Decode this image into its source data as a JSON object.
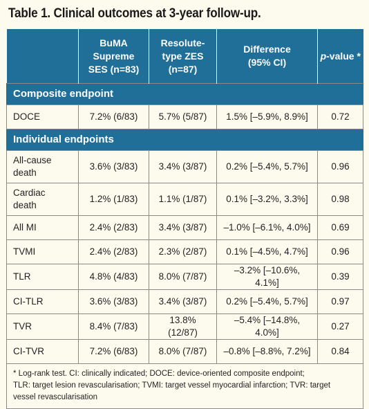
{
  "title": "Table 1. Clinical outcomes at 3-year follow-up.",
  "header": {
    "col1_lines": [
      "BuMA",
      "Supreme",
      "SES (n=83)"
    ],
    "col2_lines": [
      "Resolute-",
      "type ZES",
      "(n=87)"
    ],
    "col3_lines": [
      "Difference",
      "(95% CI)"
    ],
    "col4_italic": "p",
    "col4_rest": "-value",
    "col4_mark": "*"
  },
  "sections": [
    {
      "label": "Composite endpoint",
      "rows": [
        {
          "label": [
            "DOCE"
          ],
          "buma": "7.2% (6/83)",
          "zes": "5.7% (5/87)",
          "diff": "1.5% [–5.9%, 8.9%]",
          "p": "0.72"
        }
      ]
    },
    {
      "label": "Individual endpoints",
      "rows": [
        {
          "label": [
            "All-cause",
            "death"
          ],
          "buma": "3.6% (3/83)",
          "zes": "3.4% (3/87)",
          "diff": "0.2% [–5.4%, 5.7%]",
          "p": "0.96"
        },
        {
          "label": [
            "Cardiac",
            "death"
          ],
          "buma": "1.2% (1/83)",
          "zes": "1.1% (1/87)",
          "diff": "0.1% [–3.2%, 3.3%]",
          "p": "0.98"
        },
        {
          "label": [
            "All MI"
          ],
          "buma": "2.4% (2/83)",
          "zes": "3.4% (3/87)",
          "diff": "–1.0% [–6.1%, 4.0%]",
          "p": "0.69"
        },
        {
          "label": [
            "TVMI"
          ],
          "buma": "2.4% (2/83)",
          "zes": "2.3% (2/87)",
          "diff": "0.1% [–4.5%, 4.7%]",
          "p": "0.96"
        },
        {
          "label": [
            "TLR"
          ],
          "buma": "4.8% (4/83)",
          "zes": "8.0% (7/87)",
          "diff": "–3.2% [–10.6%, 4.1%]",
          "p": "0.39"
        },
        {
          "label": [
            "CI-TLR"
          ],
          "buma": "3.6% (3/83)",
          "zes": "3.4% (3/87)",
          "diff": "0.2% [–5.4%, 5.7%]",
          "p": "0.97"
        },
        {
          "label": [
            "TVR"
          ],
          "buma": "8.4% (7/83)",
          "zes": "13.8% (12/87)",
          "diff": "–5.4% [–14.8%, 4.0%]",
          "p": "0.27"
        },
        {
          "label": [
            "CI-TVR"
          ],
          "buma": "7.2% (6/83)",
          "zes": "8.0% (7/87)",
          "diff": "–0.8% [–8.8%, 7.2%]",
          "p": "0.84"
        }
      ]
    }
  ],
  "footnote_lines": [
    "* Log-rank test. CI: clinically indicated; DOCE: device-oriented composite endpoint;",
    "TLR: target lesion revascularisation; TVMI: target vessel myocardial infarction; TVR: target",
    "vessel revascularisation"
  ],
  "colors": {
    "header_bg": "#1f6f98",
    "body_bg": "#fdfaee",
    "border": "#8a8a8a"
  }
}
